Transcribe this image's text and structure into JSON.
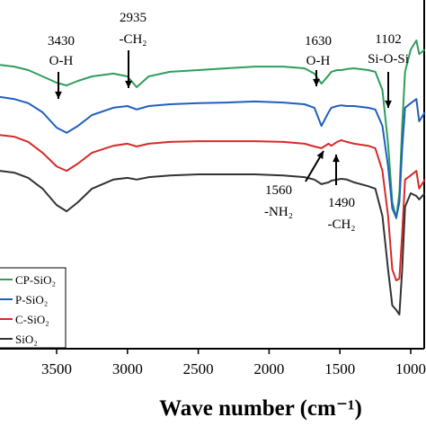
{
  "chart_data": {
    "type": "line",
    "xlabel": "Wave number (cm⁻¹)",
    "x": [
      3900,
      3800,
      3700,
      3600,
      3500,
      3430,
      3350,
      3250,
      3100,
      3000,
      2935,
      2850,
      2700,
      2500,
      2300,
      2100,
      1900,
      1750,
      1680,
      1630,
      1580,
      1560,
      1520,
      1490,
      1450,
      1400,
      1300,
      1250,
      1200,
      1160,
      1130,
      1102,
      1080,
      1060,
      1040,
      1000,
      960,
      940,
      900
    ],
    "xlim": [
      3900,
      892
    ],
    "xticks": [
      3500,
      3000,
      2500,
      2000,
      1500,
      1000
    ],
    "ylim": [
      0,
      100
    ],
    "legend": "lower left",
    "series": [
      {
        "name": "CP-SiO₂",
        "color": "#2e9e5b",
        "values": [
          81.4,
          80.9,
          79.9,
          78.1,
          76.3,
          75.5,
          76.8,
          78.1,
          78.9,
          78.1,
          75.0,
          78.1,
          79.4,
          79.9,
          80.4,
          80.9,
          80.9,
          80.4,
          78.9,
          76.0,
          78.4,
          79.4,
          79.9,
          79.9,
          80.2,
          80.4,
          79.9,
          79.4,
          74.2,
          58.8,
          42.0,
          37.4,
          44.6,
          64.0,
          79.4,
          85.8,
          88.4,
          84.5,
          85.8
        ]
      },
      {
        "name": "P-SiO₂",
        "color": "#1f5fbf",
        "values": [
          72.2,
          71.6,
          70.4,
          67.8,
          63.4,
          61.9,
          63.9,
          67.0,
          69.1,
          69.6,
          68.6,
          69.6,
          70.1,
          70.4,
          70.6,
          70.9,
          70.6,
          70.1,
          69.1,
          63.9,
          67.8,
          69.1,
          69.6,
          69.8,
          69.6,
          69.6,
          69.1,
          68.6,
          63.9,
          52.3,
          40.2,
          37.6,
          42.0,
          57.5,
          69.1,
          70.4,
          71.6,
          65.2,
          67.8
        ]
      },
      {
        "name": "C-SiO₂",
        "color": "#d62a2a",
        "values": [
          61.3,
          60.8,
          59.3,
          56.2,
          52.3,
          51.0,
          53.1,
          56.2,
          58.2,
          58.8,
          58.0,
          58.8,
          59.3,
          59.5,
          59.5,
          59.5,
          59.3,
          58.8,
          58.0,
          57.5,
          58.8,
          58.2,
          59.3,
          59.8,
          59.3,
          58.8,
          58.2,
          57.5,
          51.0,
          38.1,
          22.7,
          19.6,
          20.1,
          33.0,
          48.5,
          49.7,
          51.0,
          45.9,
          48.5
        ]
      },
      {
        "name": "SiO₂",
        "color": "#333333",
        "values": [
          51.0,
          50.5,
          49.0,
          45.9,
          41.2,
          39.4,
          42.0,
          45.9,
          48.5,
          49.0,
          48.5,
          49.2,
          49.7,
          50.0,
          50.0,
          50.0,
          49.7,
          49.2,
          48.5,
          47.2,
          47.7,
          48.2,
          48.5,
          48.7,
          48.5,
          47.7,
          46.6,
          45.9,
          38.1,
          22.7,
          12.4,
          11.1,
          9.8,
          22.7,
          40.7,
          44.6,
          43.8,
          42.8,
          44.6
        ]
      }
    ],
    "annotations": [
      {
        "value": "3430",
        "group": "O-H"
      },
      {
        "value": "2935",
        "group": "-CH₂"
      },
      {
        "value": "1630",
        "group": "O-H"
      },
      {
        "value": "1102",
        "group": "Si-O-Si"
      },
      {
        "value": "1560",
        "group": "-NH₂"
      },
      {
        "value": "1490",
        "group": "-CH₂"
      }
    ]
  }
}
